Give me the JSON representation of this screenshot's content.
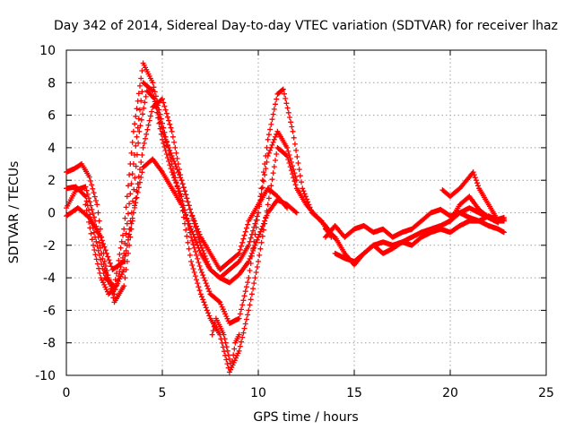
{
  "chart_data": {
    "type": "scatter",
    "title": "Day 342 of 2014, Sidereal Day-to-day VTEC variation (SDTVAR) for receiver lhaz",
    "xlabel": "GPS time / hours",
    "ylabel": "SDTVAR / TECUs",
    "xlim": [
      0,
      25
    ],
    "ylim": [
      -10,
      10
    ],
    "xticks": [
      0,
      5,
      10,
      15,
      20,
      25
    ],
    "yticks": [
      -10,
      -8,
      -6,
      -4,
      -2,
      0,
      2,
      4,
      6,
      8,
      10
    ],
    "grid": true,
    "marker": "+",
    "color": "#ff0000",
    "series": [
      {
        "name": "track-1",
        "x": [
          0.0,
          0.5,
          1.0,
          1.5,
          2.0,
          2.5,
          3.0,
          3.5,
          4.0,
          4.5,
          5.0,
          5.5,
          6.0,
          6.5,
          7.0,
          7.5,
          8.0,
          8.5,
          9.0,
          9.5,
          10.0,
          10.5,
          11.0,
          11.3,
          11.8,
          12.3,
          12.8,
          13.3,
          13.8
        ],
        "y": [
          0.3,
          1.4,
          1.6,
          -0.5,
          -3.5,
          -5.0,
          -2.5,
          3.0,
          8.0,
          7.5,
          4.5,
          2.5,
          1.0,
          -1.5,
          -3.5,
          -5.0,
          -5.5,
          -6.8,
          -6.5,
          -4.0,
          0.0,
          4.5,
          7.3,
          7.6,
          5.0,
          1.5,
          0.0,
          -0.5,
          -1.5
        ]
      },
      {
        "name": "track-2",
        "x": [
          0.0,
          0.5,
          1.0,
          1.5,
          2.0,
          2.5,
          3.0,
          3.5,
          4.0,
          4.5,
          5.0,
          5.5,
          6.0,
          6.5,
          7.0,
          7.5,
          8.0,
          8.5,
          9.0,
          9.5,
          10.0,
          10.5,
          11.0,
          11.5,
          12.0,
          12.5,
          13.0,
          13.5,
          14.0
        ],
        "y": [
          1.5,
          1.6,
          1.0,
          -1.5,
          -4.0,
          -4.5,
          -1.0,
          5.0,
          9.2,
          8.0,
          5.5,
          3.0,
          0.5,
          -3.0,
          -5.0,
          -6.5,
          -7.5,
          -9.8,
          -8.5,
          -6.0,
          -3.0,
          0.5,
          4.0,
          3.5,
          1.5,
          0.5,
          -0.2,
          -0.8,
          -1.6
        ]
      },
      {
        "name": "track-3",
        "x": [
          1.0,
          1.4,
          1.8,
          2.2,
          2.6,
          3.0,
          3.4,
          3.8,
          4.2,
          4.6,
          5.0,
          5.5,
          6.0,
          6.5,
          7.0,
          7.5,
          8.0,
          8.5,
          9.0,
          9.5,
          10.0,
          10.5,
          11.0,
          11.5,
          12.0
        ],
        "y": [
          0.5,
          -2.0,
          -4.0,
          -5.0,
          -4.5,
          -3.5,
          0.0,
          5.0,
          7.5,
          7.0,
          5.0,
          3.5,
          2.0,
          0.0,
          -2.0,
          -3.5,
          -4.0,
          -3.5,
          -3.0,
          -2.0,
          0.0,
          3.5,
          5.0,
          4.0,
          2.0
        ]
      },
      {
        "name": "track-4",
        "x": [
          0.0,
          0.4,
          0.8,
          1.2,
          1.6,
          2.0,
          2.5,
          3.0,
          3.5,
          4.0,
          4.5,
          5.0,
          5.5,
          6.0,
          6.5,
          7.0,
          7.5,
          8.0,
          8.5,
          9.0,
          9.5,
          10.0,
          10.5,
          11.0,
          11.5
        ],
        "y": [
          2.5,
          2.7,
          3.0,
          2.2,
          0.5,
          -3.0,
          -5.5,
          -4.5,
          0.0,
          4.0,
          6.5,
          7.0,
          5.0,
          2.0,
          0.0,
          -1.5,
          -2.5,
          -3.5,
          -3.0,
          -2.5,
          -0.5,
          0.5,
          1.5,
          1.0,
          0.3
        ]
      },
      {
        "name": "track-5",
        "x": [
          0.0,
          0.6,
          1.2,
          1.8,
          2.4,
          3.0,
          3.5,
          4.0,
          4.5,
          5.0,
          5.5,
          6.0,
          6.5,
          7.0,
          7.5,
          8.0,
          8.5,
          9.0,
          9.5,
          10.0,
          10.5,
          11.0,
          11.5,
          12.0
        ],
        "y": [
          -0.2,
          0.3,
          -0.3,
          -1.5,
          -3.5,
          -3.0,
          0.0,
          2.8,
          3.3,
          2.5,
          1.5,
          0.5,
          -1.0,
          -2.5,
          -3.5,
          -4.0,
          -4.3,
          -3.8,
          -3.0,
          -1.5,
          0.0,
          0.8,
          0.5,
          0.0
        ]
      },
      {
        "name": "track-6",
        "x": [
          7.6,
          7.8,
          8.0,
          8.2,
          8.4,
          8.6,
          8.8,
          9.0
        ],
        "y": [
          -7.5,
          -6.5,
          -7.0,
          -7.5,
          -8.5,
          -9.5,
          -8.0,
          -7.5
        ]
      },
      {
        "name": "track-7",
        "x": [
          13.5,
          14.0,
          14.5,
          15.0,
          15.5,
          16.0,
          16.5,
          17.0,
          17.5,
          18.0,
          18.5,
          19.0,
          19.5,
          20.0,
          20.5,
          21.0,
          21.5,
          22.0,
          22.5,
          22.8
        ],
        "y": [
          -1.0,
          -1.5,
          -2.5,
          -3.2,
          -2.5,
          -2.0,
          -1.8,
          -2.0,
          -1.8,
          -1.5,
          -1.2,
          -1.0,
          -0.8,
          -0.5,
          0.0,
          -0.3,
          -0.5,
          -0.2,
          -0.5,
          -0.4
        ]
      },
      {
        "name": "track-8",
        "x": [
          13.5,
          14.0,
          14.5,
          15.0,
          15.5,
          16.0,
          16.5,
          17.0,
          17.5,
          18.0,
          18.5,
          19.0,
          19.5,
          20.0,
          20.5,
          21.0,
          21.5,
          22.0,
          22.5,
          22.8
        ],
        "y": [
          -1.5,
          -0.8,
          -1.5,
          -1.0,
          -0.8,
          -1.2,
          -1.0,
          -1.5,
          -1.2,
          -1.0,
          -0.5,
          0.0,
          0.2,
          -0.2,
          0.0,
          0.3,
          0.0,
          -0.3,
          -0.4,
          -0.3
        ]
      },
      {
        "name": "track-9",
        "x": [
          14.0,
          14.5,
          15.0,
          15.5,
          16.0,
          16.5,
          17.0,
          17.5,
          18.0,
          18.5,
          19.0,
          19.5,
          20.0,
          20.5,
          21.0,
          21.5,
          22.0,
          22.5,
          22.8
        ],
        "y": [
          -2.5,
          -2.8,
          -3.0,
          -2.5,
          -2.0,
          -2.5,
          -2.2,
          -1.8,
          -2.0,
          -1.5,
          -1.2,
          -1.0,
          -1.2,
          -0.8,
          -0.5,
          -0.5,
          -0.8,
          -1.0,
          -1.2
        ]
      },
      {
        "name": "track-10",
        "x": [
          19.6,
          20.0,
          20.5,
          21.0,
          21.2,
          21.5,
          22.0,
          22.5,
          22.8
        ],
        "y": [
          1.4,
          1.0,
          1.5,
          2.2,
          2.5,
          1.5,
          0.5,
          -0.5,
          -0.5
        ]
      },
      {
        "name": "track-11",
        "x": [
          20.0,
          20.5,
          21.0,
          21.5,
          22.0,
          22.5
        ],
        "y": [
          -0.5,
          0.5,
          1.0,
          0.2,
          -0.3,
          -0.6
        ]
      }
    ]
  }
}
